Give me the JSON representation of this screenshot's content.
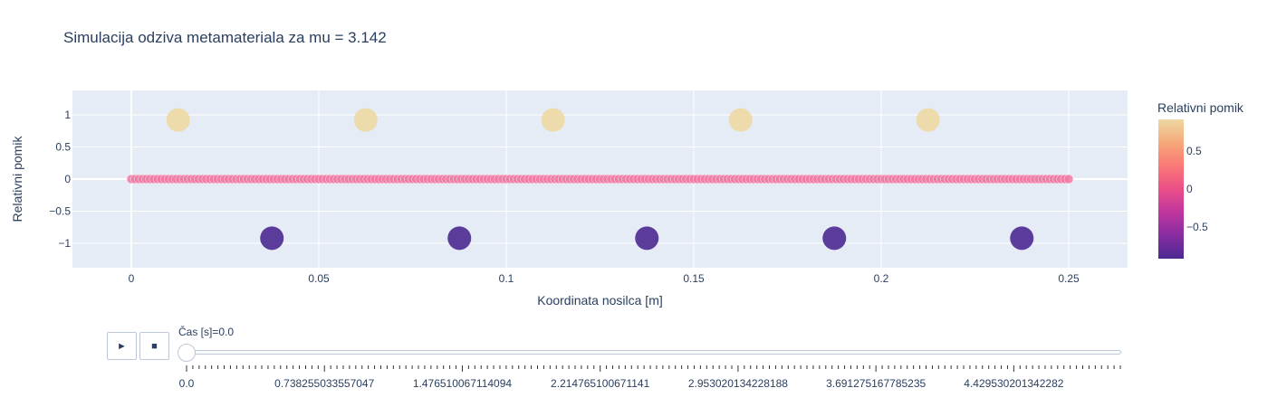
{
  "chart_data": {
    "type": "scatter",
    "title": "Simulacija odziva metamateriala za mu = 3.142",
    "xlabel": "Koordinata nosilca [m]",
    "ylabel": "Relativni pomik",
    "xlim": [
      -0.0157,
      0.2657
    ],
    "ylim": [
      -1.38,
      1.38
    ],
    "x_ticks": [
      0,
      0.05,
      0.1,
      0.15,
      0.2,
      0.25
    ],
    "x_tick_labels": [
      "0",
      "0.05",
      "0.1",
      "0.15",
      "0.2",
      "0.25"
    ],
    "y_ticks": [
      1,
      0.5,
      0,
      -0.5,
      -1
    ],
    "y_tick_labels": [
      "1",
      "0.5",
      "0",
      "−0.5",
      "−1"
    ],
    "grid": true,
    "beam_series": {
      "x_start": 0,
      "x_end": 0.25,
      "point_count": 251,
      "y": 0,
      "color": "#f07aa4"
    },
    "resonator_series": [
      {
        "x": 0.0125,
        "y": 0.92
      },
      {
        "x": 0.0375,
        "y": -0.92
      },
      {
        "x": 0.0625,
        "y": 0.92
      },
      {
        "x": 0.0875,
        "y": -0.92
      },
      {
        "x": 0.1125,
        "y": 0.92
      },
      {
        "x": 0.1375,
        "y": -0.92
      },
      {
        "x": 0.1625,
        "y": 0.92
      },
      {
        "x": 0.1875,
        "y": -0.92
      },
      {
        "x": 0.2125,
        "y": 0.92
      },
      {
        "x": 0.2375,
        "y": -0.92
      }
    ],
    "colorbar": {
      "title": "Relativni pomik",
      "range": [
        -0.92,
        0.92
      ],
      "ticks": [
        0.5,
        0,
        -0.5
      ],
      "tick_labels": [
        "0.5",
        "0",
        "−0.5"
      ],
      "colorscale": [
        "#4b2991",
        "#872ca2",
        "#c0369d",
        "#ea4f88",
        "#fa7876",
        "#f6a97a",
        "#edd9a3"
      ]
    }
  },
  "slider": {
    "current_label": "Čas [s]=0.0",
    "tick_labels": [
      "0.0",
      "0.738255033557047",
      "1.476510067114094",
      "2.214765100671141",
      "2.953020134228188",
      "3.691275167785235",
      "4.429530201342282"
    ],
    "play_icon": "play-icon",
    "stop_icon": "stop-icon",
    "play_glyph": "►",
    "stop_glyph": "■"
  }
}
